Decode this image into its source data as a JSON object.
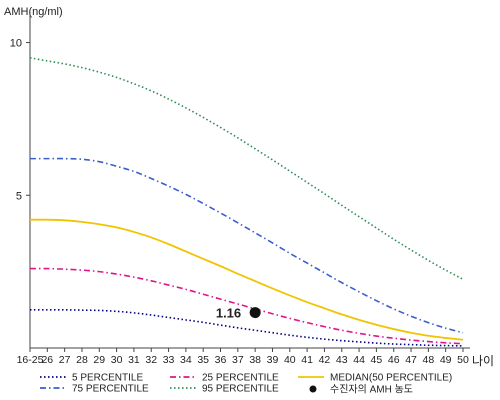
{
  "chart_data": {
    "type": "line",
    "ylabel": "AMH(ng/ml)",
    "xlabel": "나이",
    "yticks": [
      5,
      10
    ],
    "ylim": [
      0,
      11
    ],
    "categories": [
      "16-25",
      "26",
      "27",
      "28",
      "29",
      "30",
      "31",
      "32",
      "33",
      "34",
      "35",
      "36",
      "37",
      "38",
      "39",
      "40",
      "41",
      "42",
      "43",
      "44",
      "45",
      "46",
      "47",
      "48",
      "49",
      "50"
    ],
    "series": [
      {
        "name": "5 PERCENTILE",
        "color": "#000080",
        "dash": "dot",
        "values": [
          1.25,
          1.25,
          1.25,
          1.24,
          1.23,
          1.2,
          1.15,
          1.08,
          1.0,
          0.92,
          0.84,
          0.75,
          0.66,
          0.58,
          0.5,
          0.42,
          0.35,
          0.29,
          0.24,
          0.2,
          0.16,
          0.13,
          0.11,
          0.09,
          0.08,
          0.07
        ]
      },
      {
        "name": "25 PERCENTILE",
        "color": "#e0158a",
        "dash": "dashdot",
        "values": [
          2.6,
          2.6,
          2.58,
          2.55,
          2.5,
          2.42,
          2.32,
          2.2,
          2.06,
          1.92,
          1.76,
          1.6,
          1.44,
          1.28,
          1.12,
          0.97,
          0.83,
          0.7,
          0.58,
          0.48,
          0.39,
          0.32,
          0.26,
          0.21,
          0.17,
          0.14
        ]
      },
      {
        "name": "MEDIAN(50 PERCENTILE)",
        "color": "#f0c400",
        "dash": "solid",
        "values": [
          4.2,
          4.2,
          4.18,
          4.13,
          4.05,
          3.95,
          3.8,
          3.62,
          3.4,
          3.16,
          2.92,
          2.68,
          2.43,
          2.19,
          1.95,
          1.72,
          1.5,
          1.3,
          1.1,
          0.92,
          0.76,
          0.62,
          0.5,
          0.4,
          0.33,
          0.27
        ]
      },
      {
        "name": "75 PERCENTILE",
        "color": "#3a5fcd",
        "dash": "dashdot",
        "values": [
          6.2,
          6.2,
          6.2,
          6.18,
          6.1,
          5.95,
          5.78,
          5.55,
          5.3,
          5.03,
          4.73,
          4.42,
          4.1,
          3.77,
          3.44,
          3.1,
          2.78,
          2.46,
          2.14,
          1.84,
          1.55,
          1.28,
          1.04,
          0.83,
          0.65,
          0.5
        ]
      },
      {
        "name": "95 PERCENTILE",
        "color": "#2e8b57",
        "dash": "dot",
        "values": [
          9.5,
          9.4,
          9.3,
          9.18,
          9.03,
          8.86,
          8.65,
          8.42,
          8.15,
          7.86,
          7.55,
          7.22,
          6.88,
          6.52,
          6.16,
          5.79,
          5.42,
          5.05,
          4.67,
          4.3,
          3.93,
          3.56,
          3.21,
          2.87,
          2.55,
          2.25
        ]
      }
    ],
    "marker": {
      "label": "수진자의 AMH 농도",
      "category": "38",
      "value": 1.16,
      "value_label": "1.16"
    },
    "legend_placement": "bottom",
    "grid": false
  }
}
